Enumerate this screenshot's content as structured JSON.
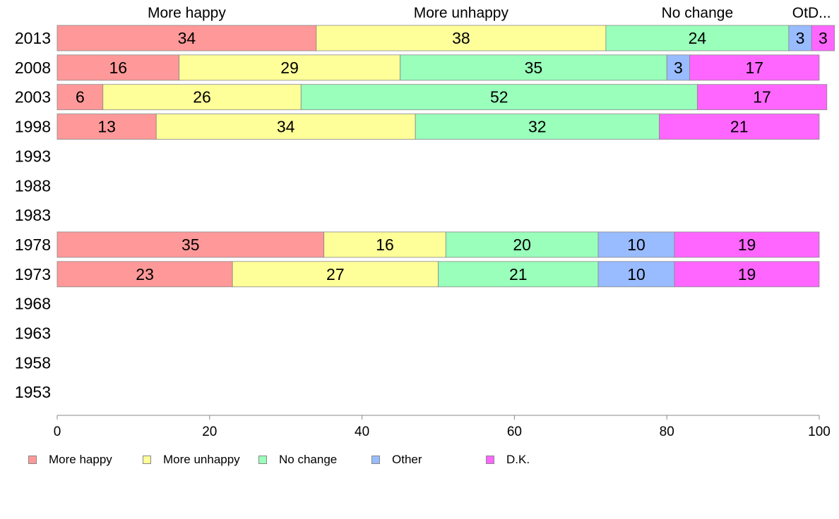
{
  "chart_data": {
    "type": "bar",
    "orientation": "horizontal",
    "stacked": true,
    "categories": [
      "2013",
      "2008",
      "2003",
      "1998",
      "1993",
      "1988",
      "1983",
      "1978",
      "1973",
      "1968",
      "1963",
      "1958",
      "1953"
    ],
    "series": [
      {
        "name": "More happy",
        "color": "#FF9999",
        "values": [
          34,
          16,
          6,
          13,
          null,
          null,
          null,
          35,
          23,
          null,
          null,
          null,
          null
        ]
      },
      {
        "name": "More unhappy",
        "color": "#FFFF99",
        "values": [
          38,
          29,
          26,
          34,
          null,
          null,
          null,
          16,
          27,
          null,
          null,
          null,
          null
        ]
      },
      {
        "name": "No change",
        "color": "#99FFBB",
        "values": [
          24,
          35,
          52,
          32,
          null,
          null,
          null,
          20,
          21,
          null,
          null,
          null,
          null
        ]
      },
      {
        "name": "Other",
        "color": "#99BBFF",
        "values": [
          3,
          3,
          0,
          0,
          null,
          null,
          null,
          10,
          10,
          null,
          null,
          null,
          null
        ]
      },
      {
        "name": "D.K.",
        "color": "#FF66FF",
        "values": [
          3,
          17,
          17,
          21,
          null,
          null,
          null,
          19,
          19,
          null,
          null,
          null,
          null
        ]
      }
    ],
    "top_labels": [
      "More happy",
      "More unhappy",
      "No change",
      "OtD..."
    ],
    "xlim": [
      0,
      100
    ],
    "xticks": [
      "0",
      "20",
      "40",
      "60",
      "80",
      "100"
    ],
    "grid": false,
    "legend_position": "bottom"
  }
}
